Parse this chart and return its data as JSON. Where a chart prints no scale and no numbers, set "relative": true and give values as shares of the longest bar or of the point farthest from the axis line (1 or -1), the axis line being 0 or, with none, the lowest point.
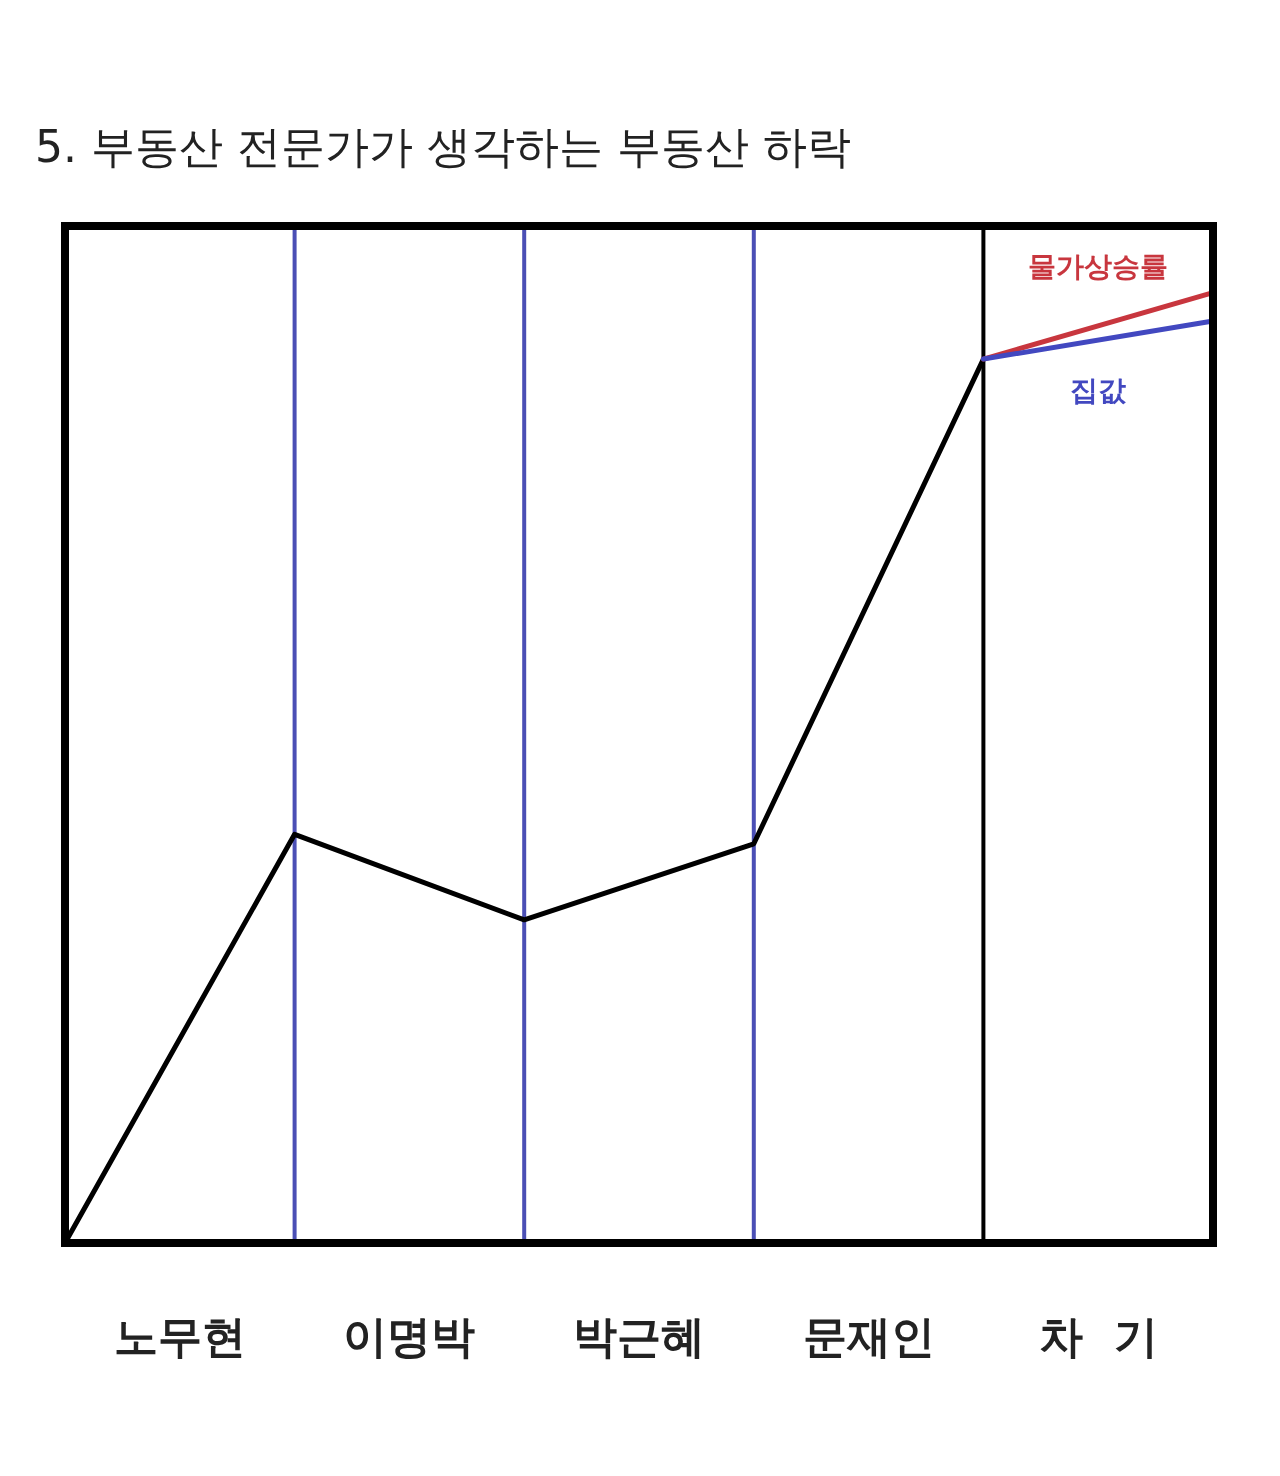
{
  "chart_data": {
    "type": "line",
    "title": "5. 부동산 전문가가 생각하는 부동산 하락",
    "relative": true,
    "categories": [
      null,
      "노무현",
      null,
      "이명박",
      null,
      "박근혜",
      null,
      "문재인",
      null,
      "차  기",
      null
    ],
    "grid": "x",
    "line_style": "solid",
    "series": [
      {
        "color": "#000000",
        "values": [
          0,
          null,
          0.43,
          null,
          0.34,
          null,
          0.42,
          null,
          0.93,
          null,
          null
        ]
      },
      {
        "name": "물가상승률",
        "color": "#c8363e",
        "values": [
          null,
          null,
          null,
          null,
          null,
          null,
          null,
          null,
          0.93,
          null,
          1
        ]
      },
      {
        "name": "집값",
        "color": "#4248c0",
        "values": [
          null,
          null,
          null,
          null,
          null,
          null,
          null,
          null,
          0.93,
          null,
          0.97
        ]
      }
    ]
  }
}
